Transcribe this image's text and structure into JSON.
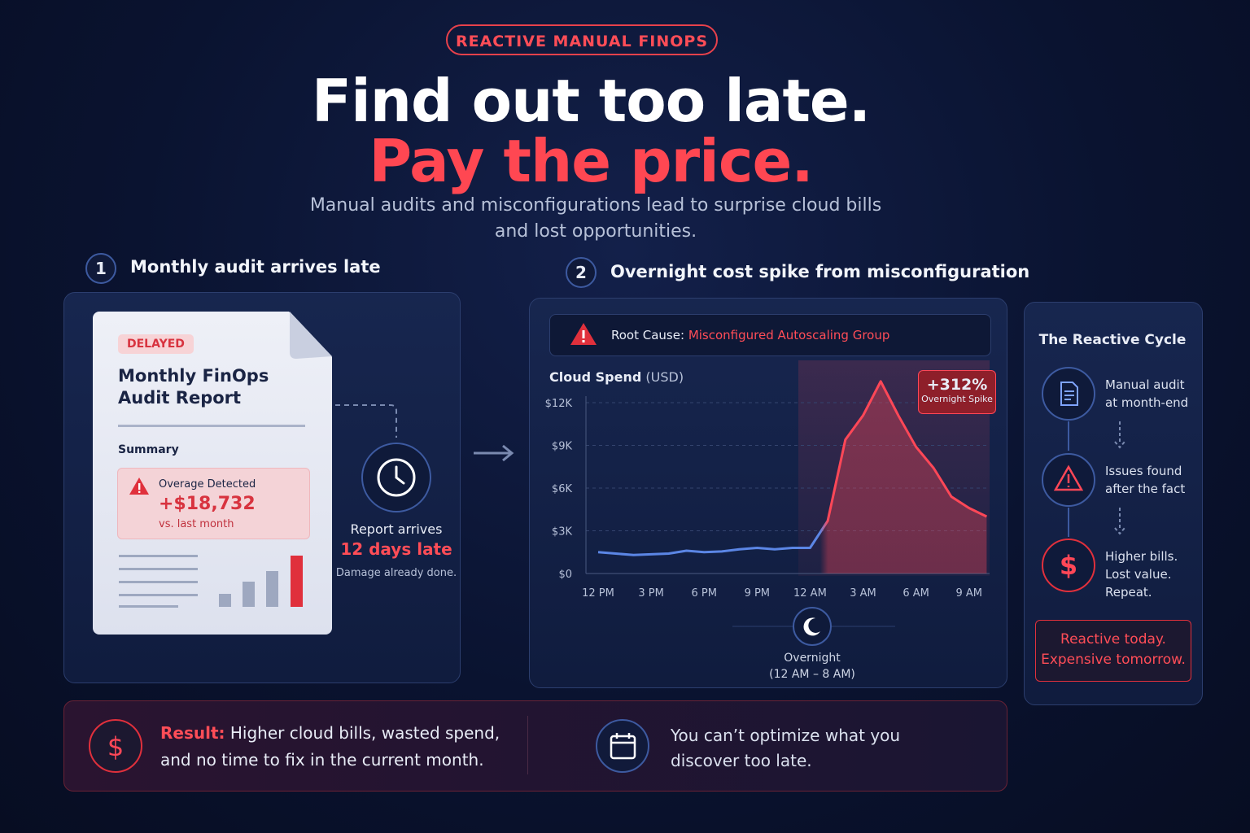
{
  "badge": "REACTIVE MANUAL FINOPS",
  "headline": {
    "line1": "Find out too late.",
    "line2": "Pay the price."
  },
  "subtitle": {
    "line1": "Manual audits and misconfigurations lead to surprise cloud bills",
    "line2": "and lost opportunities."
  },
  "step1": {
    "number": "1",
    "title": "Monthly audit arrives late",
    "report": {
      "tag": "DELAYED",
      "title_line1": "Monthly FinOps",
      "title_line2": "Audit Report",
      "section": "Summary",
      "alert_title": "Overage Detected",
      "alert_amount": "+$18,732",
      "alert_note": "vs. last month"
    },
    "arrival": {
      "line1": "Report arrives",
      "line2": "12 days late",
      "note": "Damage already done."
    }
  },
  "step2": {
    "number": "2",
    "title": "Overnight cost spike from misconfiguration",
    "root_cause": {
      "label": "Root Cause:",
      "value": "Misconfigured Autoscaling Group"
    },
    "chart": {
      "type": "line",
      "title": "Cloud Spend",
      "unit": "(USD)",
      "categories": [
        "12 PM",
        null,
        null,
        "3 PM",
        null,
        null,
        "6 PM",
        null,
        null,
        "9 PM",
        null,
        null,
        "12 AM",
        null,
        null,
        "3 AM",
        null,
        null,
        "6 AM",
        null,
        null,
        "9 AM",
        null
      ],
      "values": [
        1500,
        1400,
        1300,
        1350,
        1400,
        1600,
        1500,
        1550,
        1700,
        1800,
        1700,
        1800,
        1800,
        3700,
        9400,
        11100,
        13500,
        11100,
        8900,
        7400,
        5400,
        4600,
        4000
      ],
      "color": "#ff4757",
      "baseline_color": "#5b86e5",
      "ylim": [
        0,
        13800
      ],
      "yticks": [
        {
          "value": 0,
          "label": "$0"
        },
        {
          "value": 3000,
          "label": "$3K"
        },
        {
          "value": 6000,
          "label": "$6K"
        },
        {
          "value": 9000,
          "label": "$9K"
        },
        {
          "value": 12000,
          "label": "$12K"
        }
      ],
      "grid": true,
      "spike": {
        "value": "+312%",
        "label": "Overnight Spike"
      },
      "overnight": {
        "label": "Overnight",
        "range": "(12 AM – 8 AM)"
      }
    }
  },
  "cycle": {
    "title": "The Reactive Cycle",
    "items": [
      [
        "Manual audit",
        "at month-end"
      ],
      [
        "Issues found",
        "after the fact"
      ],
      [
        "Higher bills.",
        "Lost value.",
        "Repeat."
      ]
    ],
    "callout": [
      "Reactive today.",
      "Expensive tomorrow."
    ]
  },
  "footer": {
    "result_label": "Result:",
    "result_line1": "Higher cloud bills, wasted spend,",
    "result_line2": "and no time to fix in the current month.",
    "quote_line1": "You can’t optimize what you",
    "quote_line2": "discover too late."
  }
}
